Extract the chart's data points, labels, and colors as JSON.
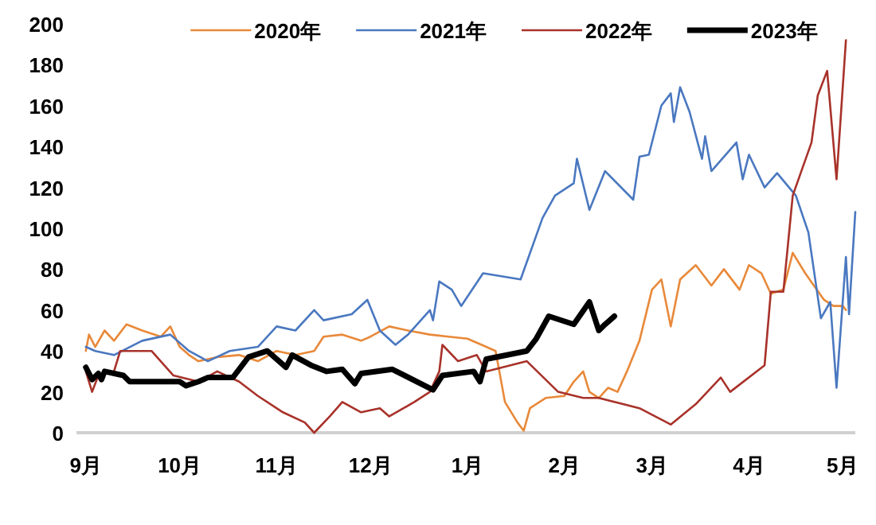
{
  "chart_data": {
    "type": "line",
    "xlim": [
      "2022-08-29",
      "2023-05-05"
    ],
    "ylim": [
      0,
      200
    ],
    "yticks": [
      0,
      20,
      40,
      60,
      80,
      100,
      120,
      140,
      160,
      180,
      200
    ],
    "xticks": [
      {
        "value": "2022-09-01",
        "label": "9月"
      },
      {
        "value": "2022-10-01",
        "label": "10月"
      },
      {
        "value": "2022-11-01",
        "label": "11月"
      },
      {
        "value": "2022-12-01",
        "label": "12月"
      },
      {
        "value": "2023-01-01",
        "label": "1月"
      },
      {
        "value": "2023-02-01",
        "label": "2月"
      },
      {
        "value": "2023-03-01",
        "label": "3月"
      },
      {
        "value": "2023-04-01",
        "label": "4月"
      },
      {
        "value": "2023-05-01",
        "label": "5月"
      }
    ],
    "legend": "top",
    "grid": false,
    "marker": "none",
    "line_style": "solid",
    "series": [
      {
        "name": "2020年",
        "color": "#e8893a",
        "x": [
          "2022-09-01",
          "2022-09-02",
          "2022-09-04",
          "2022-09-07",
          "2022-09-10",
          "2022-09-14",
          "2022-09-19",
          "2022-09-25",
          "2022-09-28",
          "2022-10-01",
          "2022-10-04",
          "2022-10-07",
          "2022-10-13",
          "2022-10-20",
          "2022-10-26",
          "2022-11-01",
          "2022-11-07",
          "2022-11-13",
          "2022-11-16",
          "2022-11-22",
          "2022-11-28",
          "2022-12-01",
          "2022-12-07",
          "2022-12-13",
          "2022-12-20",
          "2022-12-26",
          "2023-01-01",
          "2023-01-07",
          "2023-01-10",
          "2023-01-13",
          "2023-01-17",
          "2023-01-19",
          "2023-01-21",
          "2023-01-26",
          "2023-02-01",
          "2023-02-04",
          "2023-02-07",
          "2023-02-09",
          "2023-02-12",
          "2023-02-15",
          "2023-02-18",
          "2023-02-21",
          "2023-02-25",
          "2023-03-01",
          "2023-03-04",
          "2023-03-07",
          "2023-03-10",
          "2023-03-15",
          "2023-03-20",
          "2023-03-24",
          "2023-03-29",
          "2023-04-01",
          "2023-04-05",
          "2023-04-08",
          "2023-04-12",
          "2023-04-15",
          "2023-04-19",
          "2023-04-25",
          "2023-04-28",
          "2023-05-01",
          "2023-05-02"
        ],
        "values": [
          40,
          48,
          42,
          50,
          45,
          53,
          50,
          47,
          52,
          42,
          38,
          35,
          37,
          38,
          35,
          40,
          38,
          40,
          47,
          48,
          45,
          47,
          52,
          50,
          48,
          47,
          46,
          42,
          40,
          15,
          5,
          1,
          12,
          17,
          18,
          25,
          30,
          20,
          17,
          22,
          20,
          30,
          45,
          70,
          75,
          52,
          75,
          82,
          72,
          80,
          70,
          82,
          78,
          68,
          70,
          88,
          78,
          65,
          62,
          62,
          60
        ]
      },
      {
        "name": "2021年",
        "color": "#4a78c0",
        "x": [
          "2022-09-01",
          "2022-09-04",
          "2022-09-10",
          "2022-09-19",
          "2022-09-28",
          "2022-10-04",
          "2022-10-10",
          "2022-10-17",
          "2022-10-26",
          "2022-11-01",
          "2022-11-07",
          "2022-11-13",
          "2022-11-16",
          "2022-11-25",
          "2022-11-30",
          "2022-12-04",
          "2022-12-09",
          "2022-12-13",
          "2022-12-20",
          "2022-12-21",
          "2022-12-23",
          "2022-12-27",
          "2022-12-30",
          "2023-01-06",
          "2023-01-18",
          "2023-01-25",
          "2023-01-29",
          "2023-02-04",
          "2023-02-05",
          "2023-02-09",
          "2023-02-14",
          "2023-02-23",
          "2023-02-25",
          "2023-02-28",
          "2023-03-04",
          "2023-03-07",
          "2023-03-08",
          "2023-03-10",
          "2023-03-13",
          "2023-03-17",
          "2023-03-18",
          "2023-03-20",
          "2023-03-28",
          "2023-03-30",
          "2023-04-01",
          "2023-04-06",
          "2023-04-10",
          "2023-04-16",
          "2023-04-20",
          "2023-04-24",
          "2023-04-27",
          "2023-04-29",
          "2023-05-02",
          "2023-05-03",
          "2023-05-05"
        ],
        "values": [
          42,
          40,
          38,
          45,
          48,
          40,
          35,
          40,
          42,
          52,
          50,
          60,
          55,
          58,
          65,
          50,
          43,
          48,
          60,
          55,
          74,
          70,
          62,
          78,
          75,
          105,
          116,
          122,
          134,
          109,
          128,
          114,
          135,
          136,
          160,
          166,
          152,
          169,
          157,
          134,
          145,
          128,
          142,
          124,
          136,
          120,
          127,
          116,
          98,
          56,
          64,
          22,
          86,
          58,
          108
        ]
      },
      {
        "name": "2022年",
        "color": "#a8322a",
        "x": [
          "2022-09-01",
          "2022-09-03",
          "2022-09-05",
          "2022-09-10",
          "2022-09-12",
          "2022-09-22",
          "2022-09-29",
          "2022-10-07",
          "2022-10-13",
          "2022-10-20",
          "2022-10-26",
          "2022-11-03",
          "2022-11-10",
          "2022-11-13",
          "2022-11-18",
          "2022-11-22",
          "2022-11-28",
          "2022-12-04",
          "2022-12-07",
          "2022-12-15",
          "2022-12-20",
          "2022-12-23",
          "2022-12-24",
          "2022-12-29",
          "2023-01-04",
          "2023-01-07",
          "2023-01-20",
          "2023-01-30",
          "2023-02-07",
          "2023-02-12",
          "2023-02-25",
          "2023-03-07",
          "2023-03-15",
          "2023-03-23",
          "2023-03-26",
          "2023-04-06",
          "2023-04-08",
          "2023-04-12",
          "2023-04-15",
          "2023-04-21",
          "2023-04-23",
          "2023-04-26",
          "2023-04-29",
          "2023-05-02"
        ],
        "values": [
          30,
          20,
          28,
          30,
          40,
          40,
          28,
          25,
          30,
          25,
          18,
          10,
          5,
          0,
          8,
          15,
          10,
          12,
          8,
          15,
          20,
          30,
          43,
          35,
          38,
          30,
          35,
          20,
          17,
          17,
          12,
          4,
          14,
          27,
          20,
          33,
          69,
          69,
          116,
          142,
          165,
          177,
          124,
          192
        ]
      },
      {
        "name": "2023年",
        "color": "#000000",
        "x": [
          "2022-09-01",
          "2022-09-03",
          "2022-09-05",
          "2022-09-06",
          "2022-09-07",
          "2022-09-13",
          "2022-09-15",
          "2022-10-01",
          "2022-10-03",
          "2022-10-07",
          "2022-10-10",
          "2022-10-18",
          "2022-10-23",
          "2022-10-29",
          "2022-11-04",
          "2022-11-06",
          "2022-11-12",
          "2022-11-17",
          "2022-11-22",
          "2022-11-26",
          "2022-11-28",
          "2022-12-08",
          "2022-12-21",
          "2022-12-24",
          "2023-01-03",
          "2023-01-05",
          "2023-01-07",
          "2023-01-20",
          "2023-01-23",
          "2023-01-27",
          "2023-02-04",
          "2023-02-09",
          "2023-02-12",
          "2023-02-14",
          "2023-02-17"
        ],
        "values": [
          32,
          26,
          29,
          26,
          30,
          28,
          25,
          25,
          23,
          25,
          27,
          27,
          37,
          40,
          32,
          38,
          33,
          30,
          31,
          24,
          29,
          31,
          21,
          28,
          30,
          25,
          36,
          40,
          46,
          57,
          53,
          64,
          50,
          53,
          57
        ]
      }
    ]
  }
}
